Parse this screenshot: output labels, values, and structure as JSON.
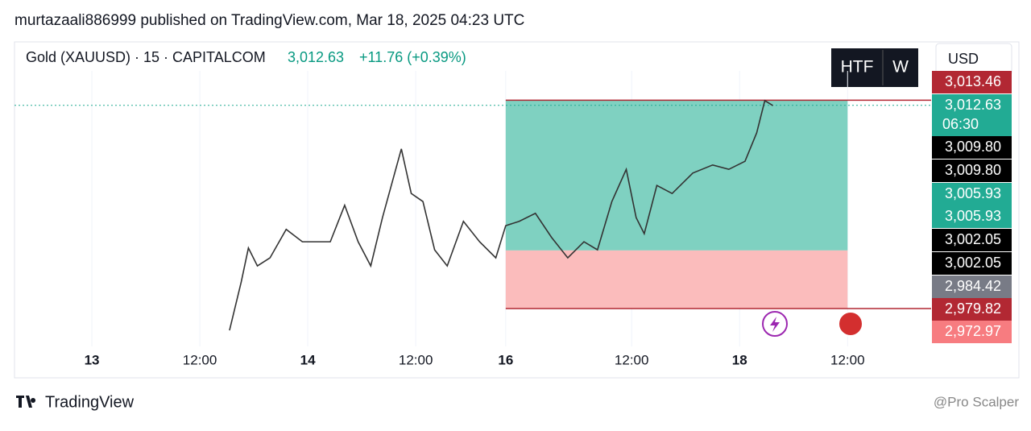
{
  "header": {
    "published": "murtazaali886999 published on TradingView.com, Mar 18, 2025 04:23 UTC",
    "symbol": "Gold (XAUUSD) · 15 · CAPITALCOM",
    "last": "3,012.63",
    "change": "+11.76 (+0.39%)",
    "buttons": [
      "HTF",
      "W"
    ],
    "currency": "USD"
  },
  "chart_data": {
    "type": "line",
    "name": "Gold (XAUUSD)",
    "color": "#333333",
    "x": [
      15.3,
      16.6,
      17.4,
      18.4,
      19.8,
      21.6,
      23.4,
      25.1,
      26.5,
      28.1,
      29.6,
      31.0,
      32.3,
      34.4,
      35.5,
      36.8,
      38.1,
      39.5,
      41.3,
      43.1,
      44.9,
      46.0,
      47.5,
      49.3,
      51.1,
      52.9,
      54.7,
      56.2,
      57.8,
      59.4,
      60.5,
      61.4,
      62.8,
      64.5,
      66.8,
      69.0,
      70.8,
      72.6,
      73.9,
      74.8,
      75.7
    ],
    "values": [
      2976.3,
      2984.1,
      2989.6,
      2986.7,
      2988.0,
      2992.6,
      2990.6,
      2990.6,
      2990.6,
      2996.5,
      2990.6,
      2986.7,
      2994.5,
      3005.6,
      2998.4,
      2997.1,
      2989.3,
      2986.7,
      2993.9,
      2990.6,
      2988.0,
      2993.2,
      2993.9,
      2995.2,
      2991.3,
      2988.0,
      2990.6,
      2989.3,
      2997.1,
      3002.3,
      2994.5,
      2991.9,
      2999.7,
      2998.4,
      3001.7,
      3003.0,
      3002.3,
      3003.6,
      3008.2,
      3013.4,
      3012.6
    ],
    "xlim": [
      -8.6,
      92.75
    ],
    "ylim": [
      2974.35,
      3018.2
    ],
    "xticks": [
      {
        "value": 0,
        "label": "13"
      },
      {
        "value": 12,
        "label": "12:00"
      },
      {
        "value": 24,
        "label": "14"
      },
      {
        "value": 36,
        "label": "12:00"
      },
      {
        "value": 46,
        "label": "16"
      },
      {
        "value": 60,
        "label": "12:00"
      },
      {
        "value": 72,
        "label": "18"
      },
      {
        "value": 84,
        "label": "12:00"
      }
    ],
    "position": {
      "start": 46,
      "end": 84,
      "target": 3013.46,
      "entry": 2989.2,
      "stop": 2979.82,
      "target_color": "#7fd1c1",
      "stop_color": "#fbbcbc"
    },
    "price_labels": [
      {
        "value": 3013.46,
        "label": "3,013.46",
        "color": "#b22833"
      },
      {
        "value": 3012.63,
        "label": "3,012.63",
        "color": "#22ab94"
      },
      {
        "value": 3009.8,
        "label": "3,009.80",
        "color": "#000000"
      },
      {
        "value": 3009.8,
        "label": "3,009.80",
        "color": "#000000"
      },
      {
        "value": 3005.93,
        "label": "3,005.93",
        "color": "#22ab94"
      },
      {
        "value": 3005.93,
        "label": "3,005.93",
        "color": "#22ab94"
      },
      {
        "value": 3002.05,
        "label": "3,002.05",
        "color": "#000000"
      },
      {
        "value": 3002.05,
        "label": "3,002.05",
        "color": "#000000"
      },
      {
        "value": 2984.42,
        "label": "2,984.42",
        "color": "#787b86"
      },
      {
        "value": 2979.82,
        "label": "2,979.82",
        "color": "#b22833"
      },
      {
        "value": 2972.97,
        "label": "2,972.97",
        "color": "#f77c80"
      }
    ],
    "countdown": "06:30"
  },
  "footer": {
    "brand": "TradingView",
    "watermark": "@Pro Scalper"
  }
}
